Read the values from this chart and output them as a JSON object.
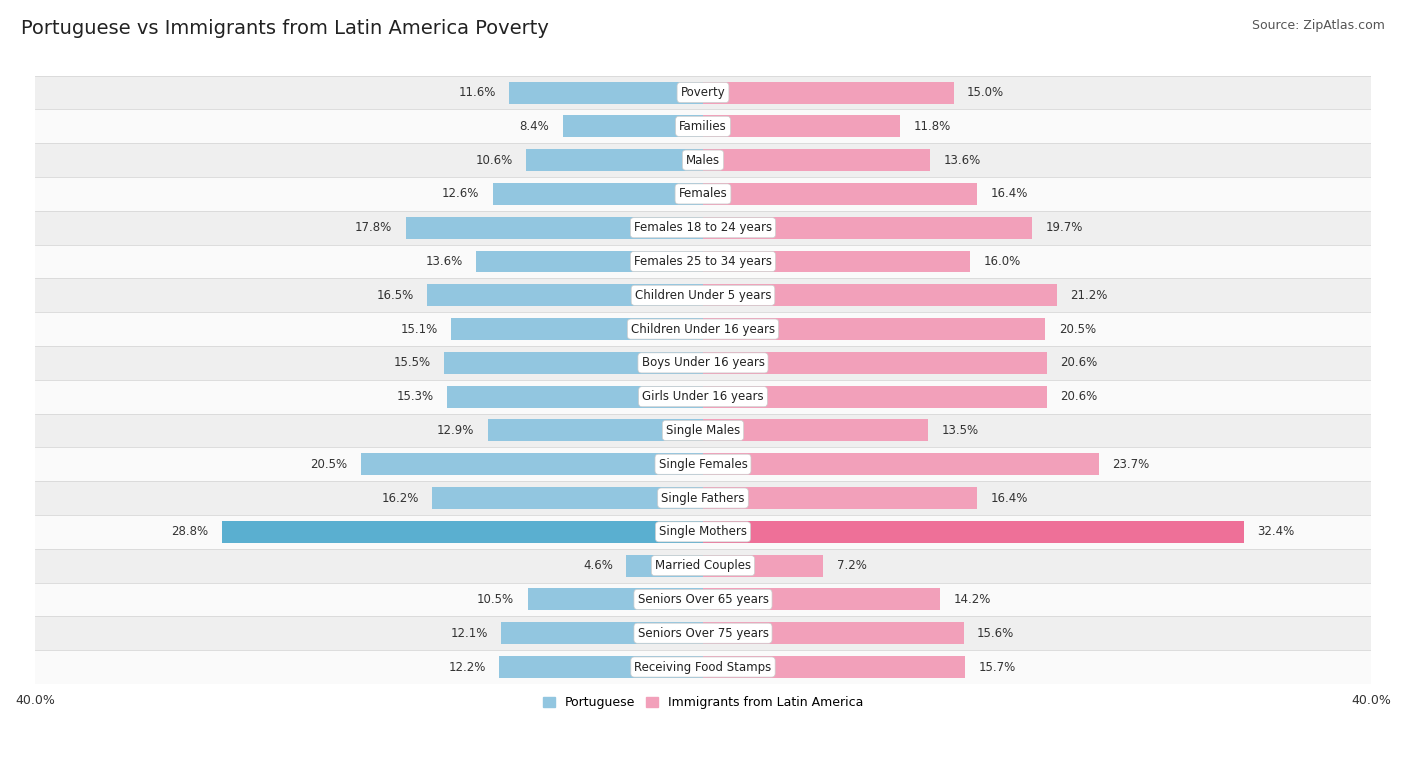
{
  "title": "Portuguese vs Immigrants from Latin America Poverty",
  "source": "Source: ZipAtlas.com",
  "categories": [
    "Poverty",
    "Families",
    "Males",
    "Females",
    "Females 18 to 24 years",
    "Females 25 to 34 years",
    "Children Under 5 years",
    "Children Under 16 years",
    "Boys Under 16 years",
    "Girls Under 16 years",
    "Single Males",
    "Single Females",
    "Single Fathers",
    "Single Mothers",
    "Married Couples",
    "Seniors Over 65 years",
    "Seniors Over 75 years",
    "Receiving Food Stamps"
  ],
  "portuguese": [
    11.6,
    8.4,
    10.6,
    12.6,
    17.8,
    13.6,
    16.5,
    15.1,
    15.5,
    15.3,
    12.9,
    20.5,
    16.2,
    28.8,
    4.6,
    10.5,
    12.1,
    12.2
  ],
  "immigrants": [
    15.0,
    11.8,
    13.6,
    16.4,
    19.7,
    16.0,
    21.2,
    20.5,
    20.6,
    20.6,
    13.5,
    23.7,
    16.4,
    32.4,
    7.2,
    14.2,
    15.6,
    15.7
  ],
  "color_portuguese": "#92C6E0",
  "color_immigrants": "#F2A0BA",
  "color_single_mothers_port": "#5AAFD0",
  "color_single_mothers_imm": "#EE7098",
  "bg_color_odd": "#efefef",
  "bg_color_even": "#fafafa",
  "axis_limit": 40.0,
  "legend_portuguese": "Portuguese",
  "legend_immigrants": "Immigrants from Latin America",
  "title_fontsize": 14,
  "source_fontsize": 9,
  "label_fontsize": 8.5,
  "value_fontsize": 8.5,
  "bar_height": 0.65
}
